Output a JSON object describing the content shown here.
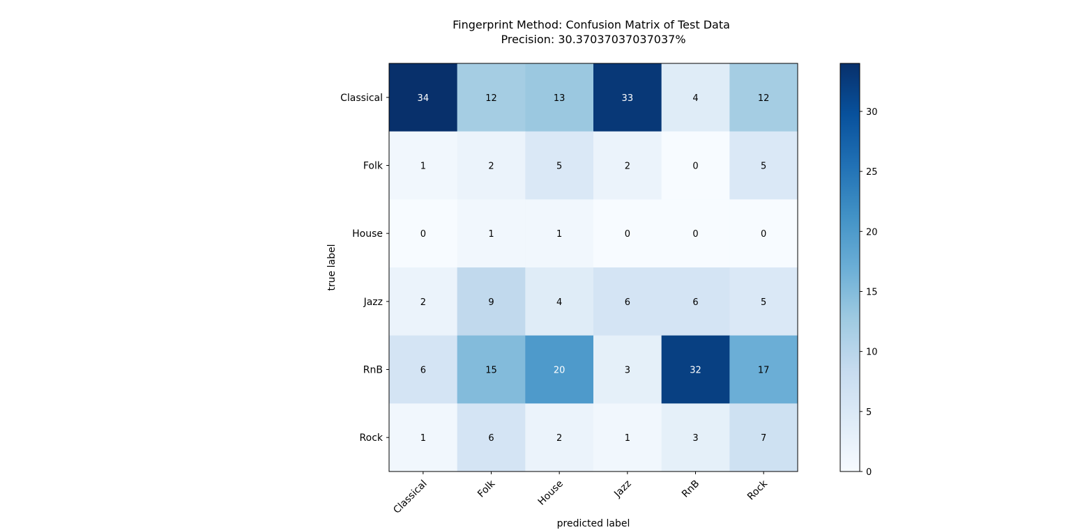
{
  "chart_data": {
    "type": "heatmap",
    "title": "Fingerprint Method: Confusion Matrix of Test Data",
    "subtitle": "Precision: 30.37037037037037%",
    "xlabel": "predicted label",
    "ylabel": "true label",
    "x_categories": [
      "Classical",
      "Folk",
      "House",
      "Jazz",
      "RnB",
      "Rock"
    ],
    "y_categories": [
      "Classical",
      "Folk",
      "House",
      "Jazz",
      "RnB",
      "Rock"
    ],
    "values": [
      [
        34,
        12,
        13,
        33,
        4,
        12
      ],
      [
        1,
        2,
        5,
        2,
        0,
        5
      ],
      [
        0,
        1,
        1,
        0,
        0,
        0
      ],
      [
        2,
        9,
        4,
        6,
        6,
        5
      ],
      [
        6,
        15,
        20,
        3,
        32,
        17
      ],
      [
        1,
        6,
        2,
        1,
        3,
        7
      ]
    ],
    "colormap": "Blues",
    "vmin": 0,
    "vmax": 34,
    "colorbar_ticks": [
      0,
      5,
      10,
      15,
      20,
      25,
      30
    ]
  }
}
